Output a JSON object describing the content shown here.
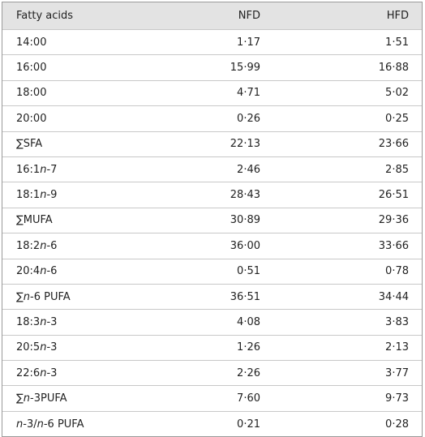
{
  "table": {
    "header": [
      "Fatty acids",
      "NFD",
      "HFD"
    ],
    "rows": [
      [
        "14:00",
        "1·17",
        "1·51"
      ],
      [
        "16:00",
        "15·99",
        "16·88"
      ],
      [
        "18:00",
        "4·71",
        "5·02"
      ],
      [
        "20:00",
        "0·26",
        "0·25"
      ],
      [
        "∑SFA",
        "22·13",
        "23·66"
      ],
      [
        "16:1n-7",
        "2·46",
        "2·85"
      ],
      [
        "18:1n-9",
        "28·43",
        "26·51"
      ],
      [
        "∑MUFA",
        "30·89",
        "29·36"
      ],
      [
        "18:2n-6",
        "36·00",
        "33·66"
      ],
      [
        "20:4n-6",
        "0·51",
        "0·78"
      ],
      [
        "∑n-6 PUFA",
        "36·51",
        "34·44"
      ],
      [
        "18:3n-3",
        "4·08",
        "3·83"
      ],
      [
        "20:5n-3",
        "1·26",
        "2·13"
      ],
      [
        "22:6n-3",
        "2·26",
        "3·77"
      ],
      [
        "∑n-3PUFA",
        "7·60",
        "9·73"
      ],
      [
        "n-3/n-6 PUFA",
        "0·21",
        "0·28"
      ]
    ]
  }
}
